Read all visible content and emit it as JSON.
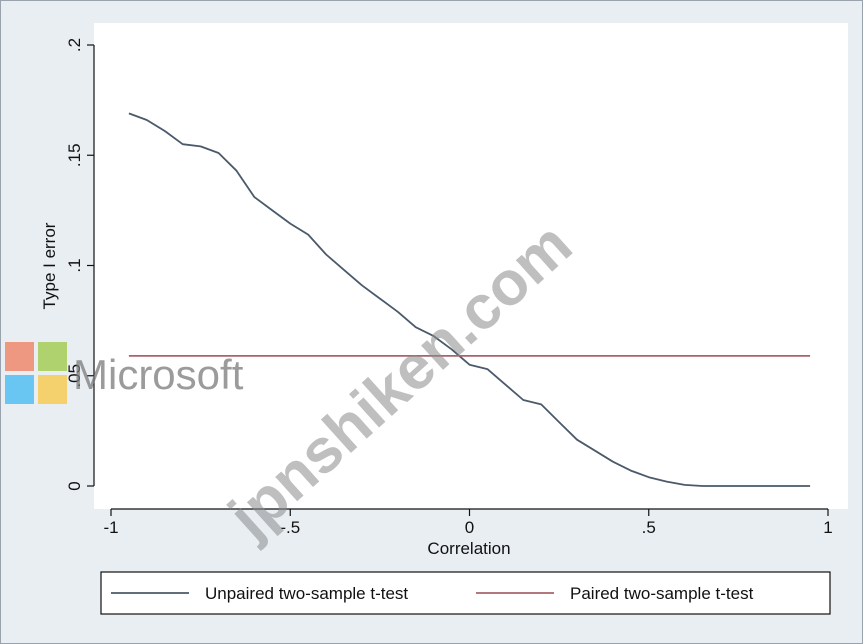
{
  "chart_data": {
    "type": "line",
    "title": "",
    "xlabel": "Correlation",
    "ylabel": "Type I error",
    "xlim": [
      -1,
      1
    ],
    "ylim": [
      0,
      0.2
    ],
    "x_ticks": [
      -1,
      -0.5,
      0,
      0.5,
      1
    ],
    "x_tick_labels": [
      "-1",
      "-.5",
      "0",
      ".5",
      "1"
    ],
    "y_ticks": [
      0,
      0.05,
      0.1,
      0.15,
      0.2
    ],
    "y_tick_labels": [
      "0",
      ".05",
      ".1",
      ".15",
      ".2"
    ],
    "grid": false,
    "legend_position": "bottom",
    "series": [
      {
        "name": "Unpaired two-sample t-test",
        "color": "#4a5a6a",
        "x": [
          -0.95,
          -0.9,
          -0.85,
          -0.8,
          -0.75,
          -0.7,
          -0.65,
          -0.6,
          -0.55,
          -0.5,
          -0.45,
          -0.4,
          -0.35,
          -0.3,
          -0.25,
          -0.2,
          -0.15,
          -0.1,
          -0.05,
          0,
          0.05,
          0.1,
          0.15,
          0.2,
          0.25,
          0.3,
          0.35,
          0.4,
          0.45,
          0.5,
          0.55,
          0.6,
          0.65,
          0.7,
          0.75,
          0.8,
          0.85,
          0.9,
          0.95
        ],
        "values": [
          0.169,
          0.166,
          0.161,
          0.155,
          0.154,
          0.151,
          0.143,
          0.131,
          0.125,
          0.119,
          0.114,
          0.105,
          0.098,
          0.091,
          0.085,
          0.079,
          0.072,
          0.068,
          0.062,
          0.055,
          0.053,
          0.046,
          0.039,
          0.037,
          0.029,
          0.021,
          0.016,
          0.011,
          0.007,
          0.004,
          0.002,
          0.0005,
          0,
          0,
          0,
          0,
          0,
          0,
          0
        ]
      },
      {
        "name": "Paired two-sample t-test",
        "color": "#a8646c",
        "x": [
          -0.95,
          0.95
        ],
        "values": [
          0.059,
          0.059
        ]
      }
    ]
  },
  "watermarks": {
    "site": "jpnshiken.com",
    "brand": "Microsoft",
    "brand_logo_colors": [
      "#f25022",
      "#7fba00",
      "#00a4ef",
      "#ffb900"
    ]
  }
}
